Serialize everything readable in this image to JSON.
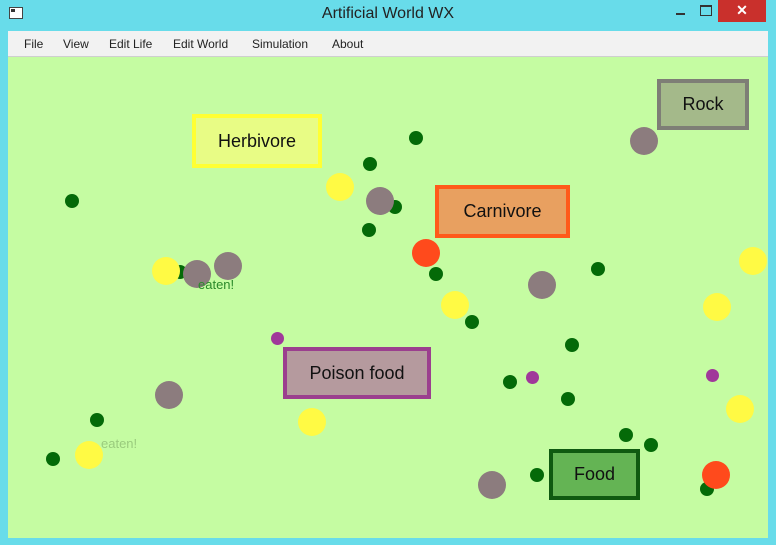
{
  "window": {
    "title": "Artificial World WX",
    "controls": {
      "minimize": "",
      "maximize": "",
      "close": "✕"
    }
  },
  "menu": {
    "items": [
      "File",
      "View",
      "Edit Life",
      "Edit World",
      "Simulation",
      "About"
    ]
  },
  "world": {
    "background": "#c5fca2",
    "labels": {
      "herbivore": "Herbivore",
      "carnivore": "Carnivore",
      "rock": "Rock",
      "poison_food": "Poison food",
      "food": "Food"
    },
    "events": [
      "eaten!",
      "eaten!"
    ],
    "colors": {
      "food": "#046a08",
      "rock": "#8c7c7e",
      "herbivore": "#fffa44",
      "carnivore": "#ff4a1c",
      "poison": "#a0389a"
    }
  }
}
